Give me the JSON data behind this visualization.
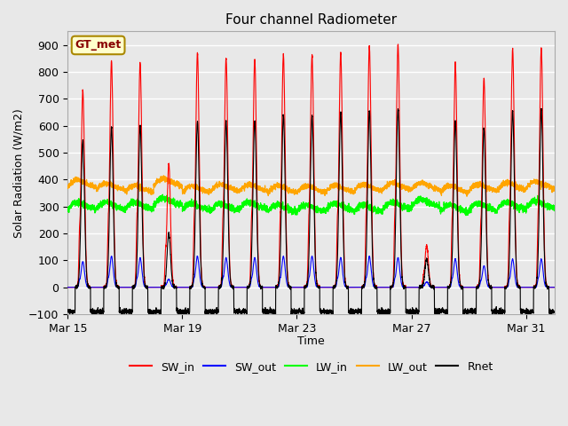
{
  "title": "Four channel Radiometer",
  "xlabel": "Time",
  "ylabel": "Solar Radiation (W/m2)",
  "ylim": [
    -100,
    950
  ],
  "yticks": [
    -100,
    0,
    100,
    200,
    300,
    400,
    500,
    600,
    700,
    800,
    900
  ],
  "xtick_labels": [
    "Mar 15",
    "Mar 19",
    "Mar 23",
    "Mar 27",
    "Mar 31"
  ],
  "legend_entries": [
    "SW_in",
    "SW_out",
    "LW_in",
    "LW_out",
    "Rnet"
  ],
  "legend_colors": [
    "red",
    "blue",
    "lime",
    "orange",
    "black"
  ],
  "annotation_text": "GT_met",
  "annotation_bg": "#ffffcc",
  "annotation_border": "#aa8800",
  "annotation_text_color": "#880000",
  "bg_color": "#e8e8e8",
  "grid_color": "white",
  "num_days": 17,
  "samples_per_day": 288,
  "SW_in_peaks": [
    730,
    840,
    835,
    460,
    870,
    850,
    845,
    865,
    860,
    870,
    895,
    900,
    155,
    830,
    775,
    885,
    890
  ],
  "SW_out_peaks": [
    95,
    115,
    110,
    30,
    115,
    110,
    110,
    115,
    115,
    110,
    115,
    110,
    20,
    105,
    80,
    105,
    105
  ],
  "LW_in_base": [
    285,
    285,
    285,
    300,
    280,
    280,
    285,
    275,
    275,
    280,
    275,
    285,
    295,
    275,
    280,
    285,
    290
  ],
  "LW_out_base": [
    370,
    360,
    350,
    375,
    350,
    355,
    355,
    350,
    350,
    350,
    355,
    360,
    360,
    350,
    355,
    360,
    365
  ],
  "Rnet_peaks": [
    545,
    595,
    600,
    200,
    615,
    615,
    620,
    640,
    635,
    650,
    655,
    660,
    105,
    615,
    590,
    655,
    660
  ],
  "Rnet_night": -90,
  "figsize": [
    6.4,
    4.8
  ],
  "dpi": 100
}
